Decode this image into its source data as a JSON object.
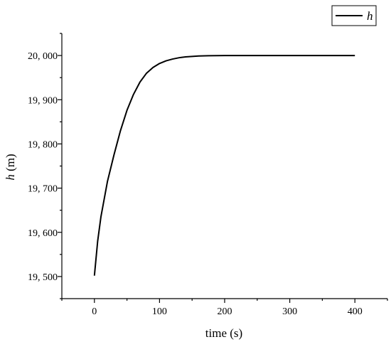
{
  "chart_data": {
    "type": "line",
    "title": "",
    "xlabel": "time (s)",
    "ylabel_symbol": "h",
    "ylabel_unit": " (m)",
    "xlim": [
      -50,
      450
    ],
    "ylim": [
      19450,
      20050
    ],
    "x_ticks": [
      0,
      100,
      200,
      300,
      400
    ],
    "x_tick_labels": [
      "0",
      "100",
      "200",
      "300",
      "400"
    ],
    "y_ticks": [
      19500,
      19600,
      19700,
      19800,
      19900,
      20000
    ],
    "y_tick_labels": [
      "19, 500",
      "19, 600",
      "19, 700",
      "19, 800",
      "19, 900",
      "20, 000"
    ],
    "grid": false,
    "legend_position": "top-right",
    "series": [
      {
        "name": "h",
        "color": "#000000",
        "x": [
          0,
          5,
          10,
          15,
          20,
          30,
          40,
          50,
          60,
          70,
          80,
          90,
          100,
          110,
          120,
          130,
          140,
          150,
          160,
          175,
          200,
          225,
          250,
          300,
          350,
          400
        ],
        "y": [
          19502,
          19580,
          19635,
          19675,
          19715,
          19775,
          19830,
          19876,
          19912,
          19940,
          19960,
          19973,
          19982,
          19988,
          19992,
          19995,
          19997,
          19998,
          19999,
          19999.5,
          20000,
          20000,
          20000,
          20000,
          20000,
          20000
        ]
      }
    ]
  }
}
